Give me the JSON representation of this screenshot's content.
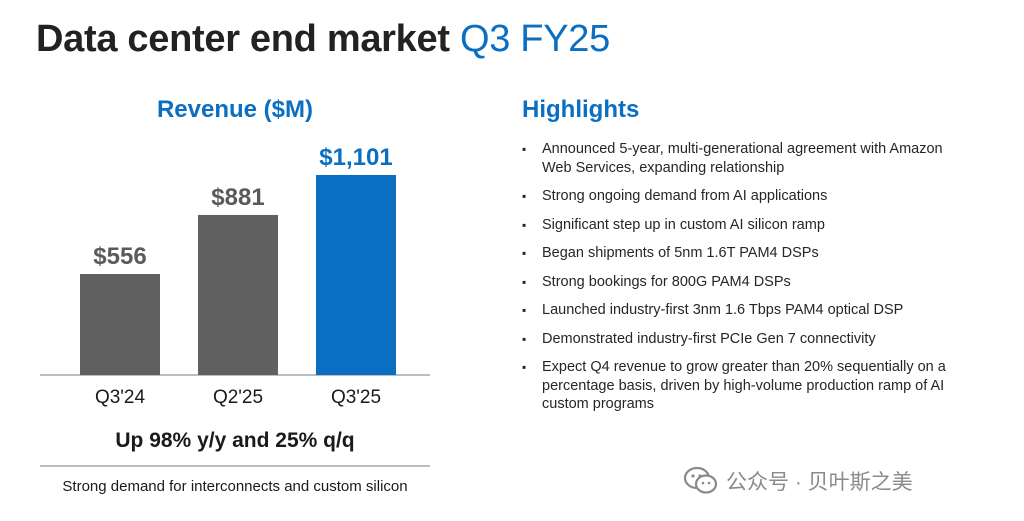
{
  "header": {
    "title_main": "Data center end market",
    "title_accent": "Q3 FY25",
    "colors": {
      "accent": "#0a6fc2",
      "bar_gray": "#606060",
      "bar_highlight": "#0a6fc2"
    }
  },
  "chart_data": {
    "type": "bar",
    "title": "Revenue ($M)",
    "categories": [
      "Q3'24",
      "Q2'25",
      "Q3'25"
    ],
    "values": [
      556,
      881,
      1101
    ],
    "data_labels": [
      "$556",
      "$881",
      "$1,101"
    ],
    "highlight_index": 2,
    "xlabel": "",
    "ylabel": "",
    "ylim": [
      0,
      1101
    ],
    "grid": false,
    "legend": "none"
  },
  "summary": {
    "headline": "Up 98% y/y and 25% q/q",
    "note": "Strong demand for interconnects and custom silicon"
  },
  "highlights": {
    "title": "Highlights",
    "items": [
      "Announced 5-year, multi-generational agreement with Amazon Web Services, expanding relationship",
      "Strong ongoing demand from AI applications",
      "Significant step up in custom AI silicon ramp",
      "Began shipments of 5nm 1.6T PAM4 DSPs",
      "Strong bookings for 800G PAM4 DSPs",
      "Launched industry-first 3nm 1.6 Tbps PAM4 optical DSP",
      "Demonstrated industry-first PCIe Gen 7 connectivity",
      "Expect Q4 revenue to grow greater than 20% sequentially on a percentage basis, driven by high-volume production ramp of AI custom programs"
    ]
  },
  "watermark": {
    "icon": "wechat-icon",
    "text": "公众号 · 贝叶斯之美"
  }
}
